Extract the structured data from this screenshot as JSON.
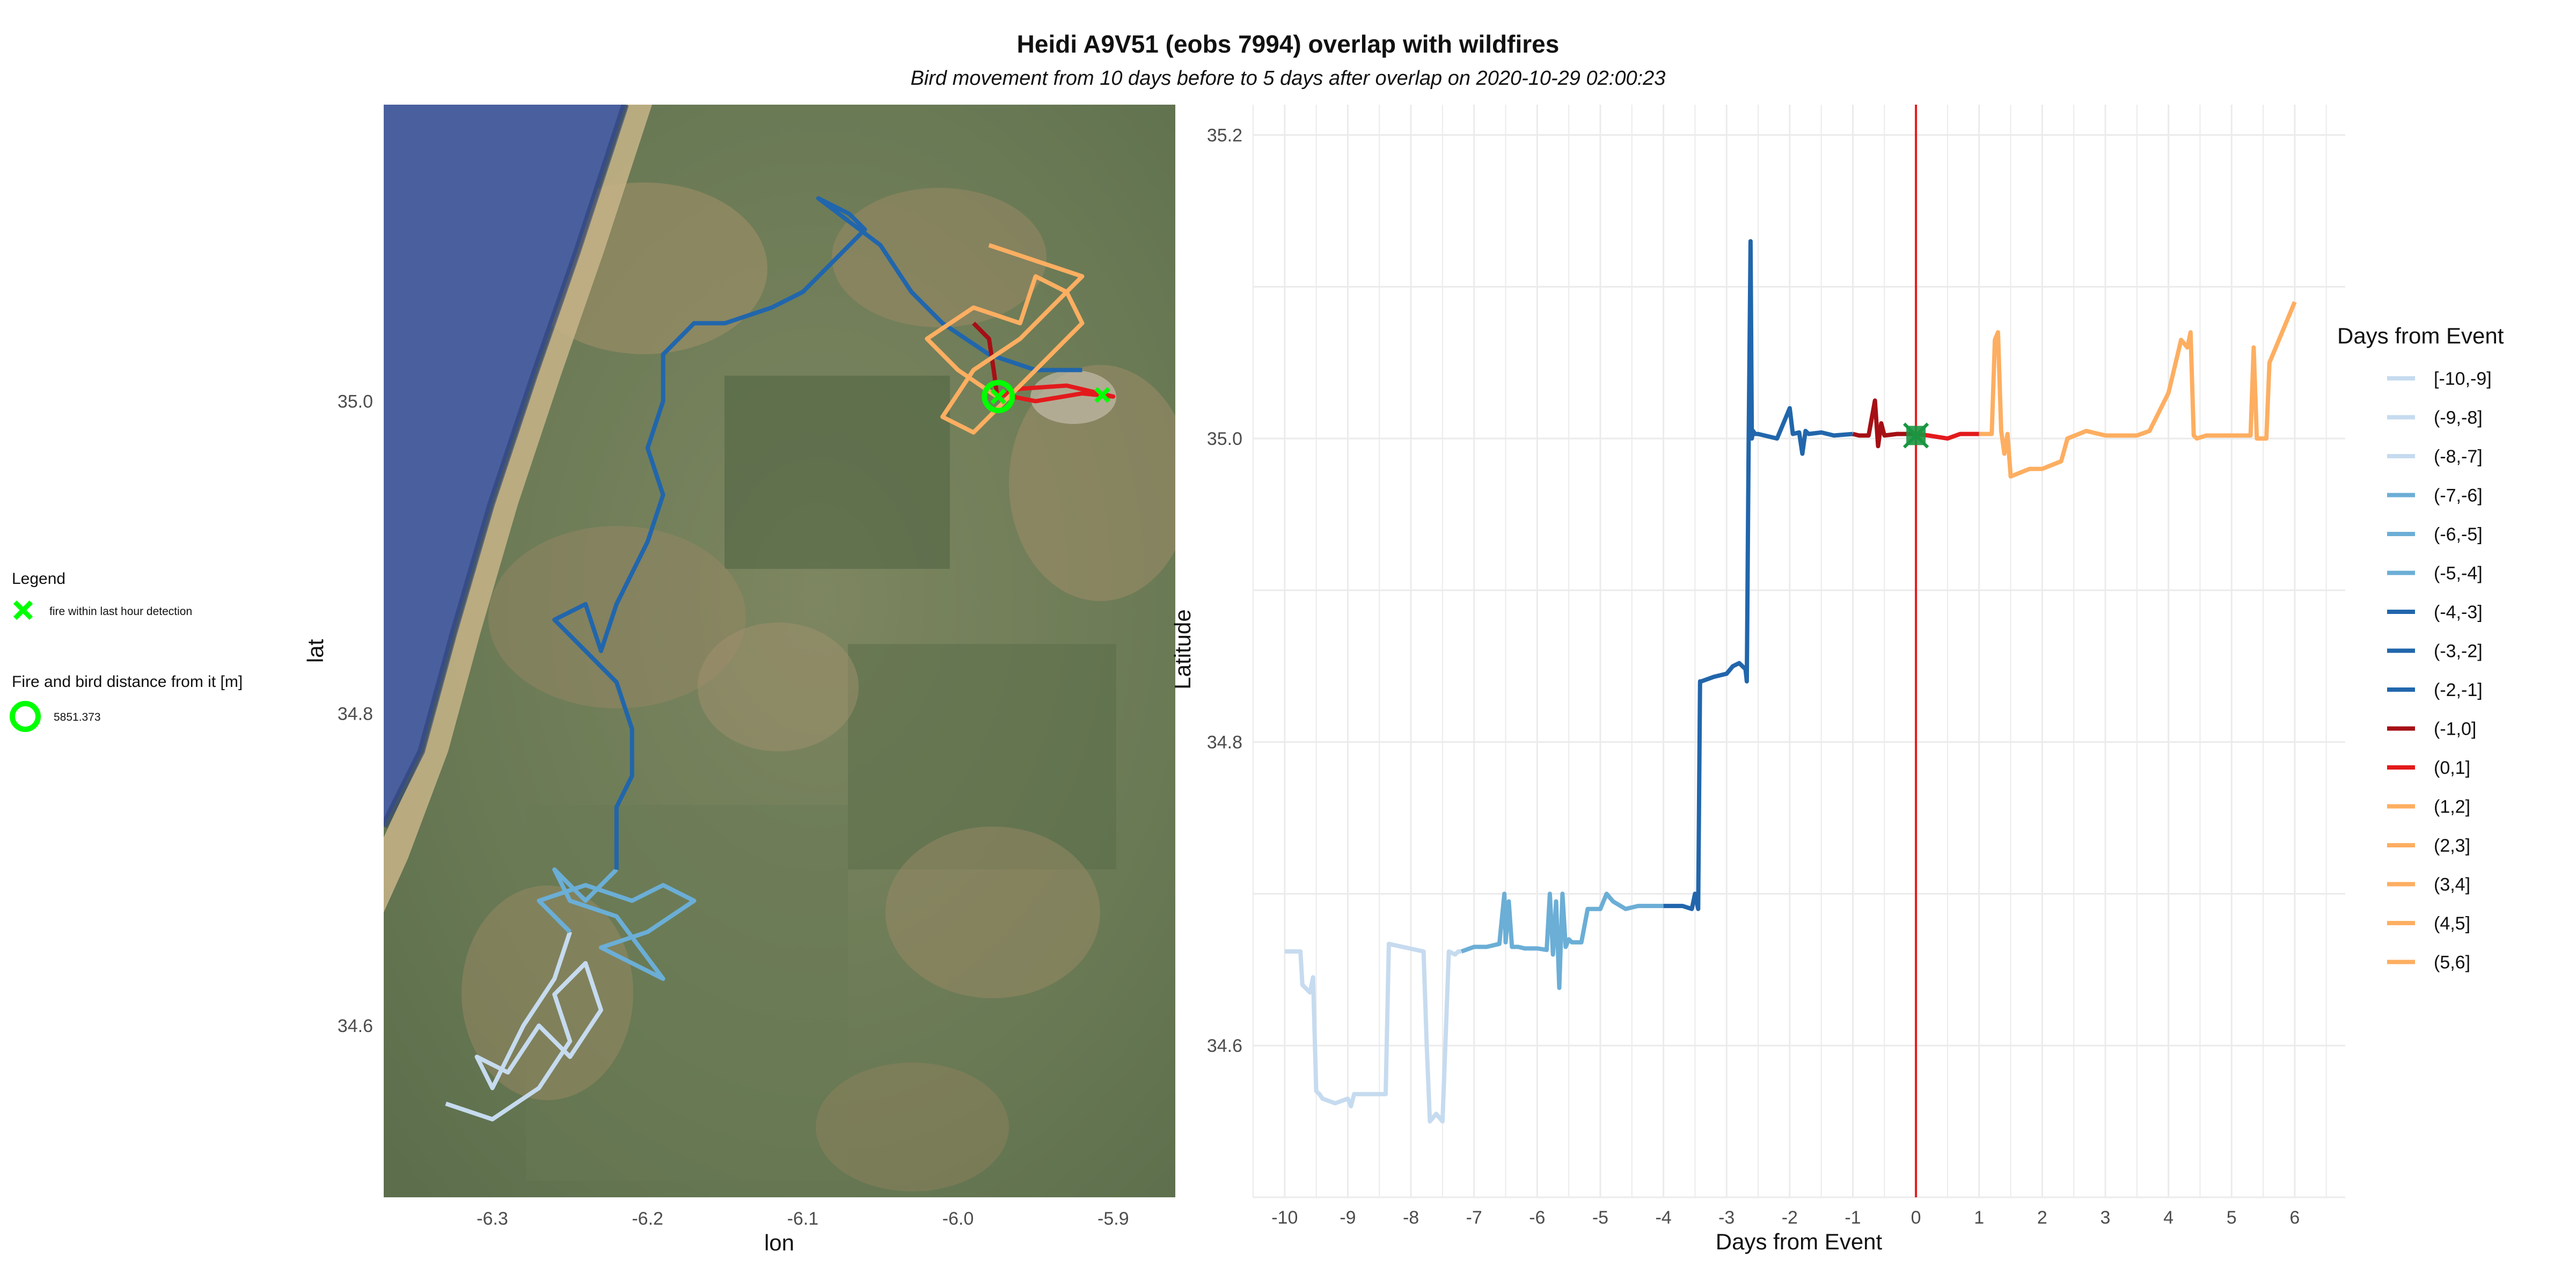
{
  "title": "Heidi A9V51 (eobs 7994) overlap with wildfires",
  "subtitle": "Bird movement from 10 days before to 5 days after overlap on 2020-10-29 02:00:23",
  "left_legend": {
    "title": "Legend",
    "fire_label": "fire within last hour detection",
    "fire_color": "#00ff00",
    "distance_title": "Fire and bird distance from it [m]",
    "distance_value": "5851.373",
    "circle_color": "#00ff00"
  },
  "colors": {
    "light": "#c6dbef",
    "mid": "#6baed6",
    "dark": "#2166ac",
    "darkred": "#a50f15",
    "red": "#e31a1c",
    "orange": "#fdae61",
    "event_line": "#e41a1c",
    "fire_marker": "#1a9641"
  },
  "chart_data": [
    {
      "type": "line",
      "description_kind": "map track",
      "xlabel": "lon",
      "ylabel": "lat",
      "xlim": [
        -6.37,
        -5.86
      ],
      "ylim": [
        34.49,
        35.19
      ],
      "x_ticks": [
        "-6.3",
        "-6.2",
        "-6.1",
        "-6.0",
        "-5.9"
      ],
      "y_ticks": [
        "34.6",
        "34.8",
        "35.0"
      ],
      "x_tick_values": [
        -6.3,
        -6.2,
        -6.1,
        -6.0,
        -5.9
      ],
      "y_tick_values": [
        34.6,
        34.8,
        35.0
      ],
      "basemap": "satellite",
      "fires": [
        {
          "lon": -5.974,
          "lat": 35.003
        },
        {
          "lon": -5.907,
          "lat": 35.004
        }
      ],
      "circle": {
        "lon": -5.974,
        "lat": 35.003
      },
      "tracks": [
        {
          "color_key": "light",
          "lon": [
            -6.33,
            -6.3,
            -6.27,
            -6.25,
            -6.26,
            -6.24,
            -6.23,
            -6.25,
            -6.27,
            -6.29,
            -6.31,
            -6.3,
            -6.28,
            -6.26,
            -6.25
          ],
          "lat": [
            34.55,
            34.54,
            34.56,
            34.59,
            34.62,
            34.64,
            34.61,
            34.58,
            34.6,
            34.57,
            34.58,
            34.56,
            34.6,
            34.63,
            34.66
          ]
        },
        {
          "color_key": "mid",
          "lon": [
            -6.25,
            -6.27,
            -6.24,
            -6.21,
            -6.19,
            -6.17,
            -6.2,
            -6.23,
            -6.21,
            -6.19,
            -6.22,
            -6.25,
            -6.26,
            -6.24,
            -6.22
          ],
          "lat": [
            34.66,
            34.68,
            34.69,
            34.68,
            34.69,
            34.68,
            34.66,
            34.65,
            34.64,
            34.63,
            34.67,
            34.68,
            34.7,
            34.68,
            34.7
          ]
        },
        {
          "color_key": "dark",
          "lon": [
            -6.22,
            -6.22,
            -6.21,
            -6.21,
            -6.22,
            -6.24,
            -6.26,
            -6.24,
            -6.23,
            -6.22,
            -6.2,
            -6.19,
            -6.2,
            -6.19,
            -6.19,
            -6.17,
            -6.15,
            -6.12,
            -6.1,
            -6.08,
            -6.06,
            -6.07,
            -6.09,
            -6.05,
            -6.03,
            -6.01,
            -5.98,
            -5.95,
            -5.92
          ],
          "lat": [
            34.7,
            34.74,
            34.76,
            34.79,
            34.82,
            34.84,
            34.86,
            34.87,
            34.84,
            34.87,
            34.91,
            34.94,
            34.97,
            35.0,
            35.03,
            35.05,
            35.05,
            35.06,
            35.07,
            35.09,
            35.11,
            35.12,
            35.13,
            35.1,
            35.07,
            35.05,
            35.03,
            35.02,
            35.02
          ]
        },
        {
          "color_key": "darkred",
          "lon": [
            -5.99,
            -5.98,
            -5.977,
            -5.975
          ],
          "lat": [
            35.05,
            35.04,
            35.02,
            35.005
          ]
        },
        {
          "color_key": "red",
          "lon": [
            -5.975,
            -5.95,
            -5.92,
            -5.9,
            -5.93,
            -5.96,
            -5.975
          ],
          "lat": [
            35.005,
            35.0,
            35.005,
            35.003,
            35.01,
            35.008,
            35.003
          ]
        },
        {
          "color_key": "orange",
          "lon": [
            -5.975,
            -6.0,
            -6.02,
            -5.99,
            -5.96,
            -5.95,
            -5.93,
            -5.92,
            -5.94,
            -5.97,
            -5.99,
            -6.01,
            -5.99,
            -5.96,
            -5.94,
            -5.92,
            -5.95,
            -5.98
          ],
          "lat": [
            35.003,
            35.02,
            35.04,
            35.06,
            35.05,
            35.08,
            35.07,
            35.05,
            35.03,
            35.0,
            34.98,
            34.99,
            35.02,
            35.04,
            35.06,
            35.08,
            35.09,
            35.1
          ]
        }
      ]
    },
    {
      "type": "line",
      "xlabel": "Days from Event",
      "ylabel": "Latitude",
      "xlim": [
        -10.5,
        6.8
      ],
      "ylim": [
        34.5,
        35.22
      ],
      "x_ticks": [
        "-10",
        "-9",
        "-8",
        "-7",
        "-6",
        "-5",
        "-4",
        "-3",
        "-2",
        "-1",
        "0",
        "1",
        "2",
        "3",
        "4",
        "5",
        "6"
      ],
      "x_tick_values": [
        -10,
        -9,
        -8,
        -7,
        -6,
        -5,
        -4,
        -3,
        -2,
        -1,
        0,
        1,
        2,
        3,
        4,
        5,
        6
      ],
      "y_ticks": [
        "34.6",
        "34.8",
        "35.0",
        "35.2"
      ],
      "y_tick_values": [
        34.6,
        34.8,
        35.0,
        35.2
      ],
      "event_x": 0,
      "fire_marker": {
        "x": 0,
        "y": 35.002
      },
      "legend_title": "Days from Event",
      "legend": [
        {
          "label": "[-10,-9]",
          "color_key": "light"
        },
        {
          "label": "(-9,-8]",
          "color_key": "light"
        },
        {
          "label": "(-8,-7]",
          "color_key": "light"
        },
        {
          "label": "(-7,-6]",
          "color_key": "mid"
        },
        {
          "label": "(-6,-5]",
          "color_key": "mid"
        },
        {
          "label": "(-5,-4]",
          "color_key": "mid"
        },
        {
          "label": "(-4,-3]",
          "color_key": "dark"
        },
        {
          "label": "(-3,-2]",
          "color_key": "dark"
        },
        {
          "label": "(-2,-1]",
          "color_key": "dark"
        },
        {
          "label": "(-1,0]",
          "color_key": "darkred"
        },
        {
          "label": "(0,1]",
          "color_key": "red"
        },
        {
          "label": "(1,2]",
          "color_key": "orange"
        },
        {
          "label": "(2,3]",
          "color_key": "orange"
        },
        {
          "label": "(3,4]",
          "color_key": "orange"
        },
        {
          "label": "(4,5]",
          "color_key": "orange"
        },
        {
          "label": "(5,6]",
          "color_key": "orange"
        }
      ],
      "series": [
        {
          "color_key": "light",
          "x": [
            -10.0,
            -9.75,
            -9.72,
            -9.6,
            -9.55,
            -9.5,
            -9.45,
            -9.4,
            -9.2,
            -9.0,
            -8.95,
            -8.9,
            -8.4,
            -8.35,
            -7.8,
            -7.75,
            -7.7,
            -7.6,
            -7.5,
            -7.4,
            -7.3,
            -7.25,
            -7.2
          ],
          "y": [
            34.662,
            34.662,
            34.64,
            34.635,
            34.645,
            34.57,
            34.568,
            34.565,
            34.562,
            34.565,
            34.56,
            34.568,
            34.568,
            34.667,
            34.662,
            34.6,
            34.55,
            34.555,
            34.55,
            34.662,
            34.66,
            34.662,
            34.662
          ]
        },
        {
          "color_key": "mid",
          "x": [
            -7.2,
            -7.0,
            -6.8,
            -6.6,
            -6.52,
            -6.5,
            -6.45,
            -6.4,
            -6.3,
            -6.2,
            -6.0,
            -5.85,
            -5.8,
            -5.75,
            -5.7,
            -5.65,
            -5.6,
            -5.55,
            -5.5,
            -5.45,
            -5.3,
            -5.2,
            -5.0,
            -4.9,
            -4.8,
            -4.6,
            -4.4,
            -4.2,
            -4.0
          ],
          "y": [
            34.662,
            34.665,
            34.665,
            34.667,
            34.7,
            34.668,
            34.695,
            34.665,
            34.665,
            34.664,
            34.664,
            34.663,
            34.7,
            34.66,
            34.695,
            34.638,
            34.7,
            34.665,
            34.67,
            34.668,
            34.668,
            34.69,
            34.69,
            34.7,
            34.695,
            34.69,
            34.692,
            34.692,
            34.692
          ]
        },
        {
          "color_key": "dark",
          "x": [
            -4.0,
            -3.7,
            -3.55,
            -3.5,
            -3.45,
            -3.42,
            -3.4,
            -3.2,
            -3.0,
            -2.9,
            -2.8,
            -2.7,
            -2.68,
            -2.65,
            -2.62,
            -2.6,
            -2.58,
            -2.55,
            -2.5,
            -2.4,
            -2.2,
            -2.0,
            -1.95,
            -1.85,
            -1.8,
            -1.75,
            -1.7,
            -1.5,
            -1.3,
            -1.0
          ],
          "y": [
            34.692,
            34.692,
            34.69,
            34.7,
            34.69,
            34.84,
            34.84,
            34.843,
            34.845,
            34.85,
            34.852,
            34.848,
            34.84,
            35.0,
            35.13,
            35.0,
            35.005,
            35.003,
            35.003,
            35.002,
            35.0,
            35.02,
            35.003,
            35.004,
            34.99,
            35.005,
            35.003,
            35.004,
            35.002,
            35.003
          ]
        },
        {
          "color_key": "darkred",
          "x": [
            -1.0,
            -0.9,
            -0.75,
            -0.65,
            -0.6,
            -0.55,
            -0.5,
            -0.3,
            0.0
          ],
          "y": [
            35.003,
            35.002,
            35.002,
            35.025,
            34.995,
            35.01,
            35.002,
            35.003,
            35.003
          ]
        },
        {
          "color_key": "red",
          "x": [
            0.0,
            0.2,
            0.5,
            0.7,
            1.0
          ],
          "y": [
            35.003,
            35.002,
            35.0,
            35.003,
            35.003
          ]
        },
        {
          "color_key": "orange",
          "x": [
            1.0,
            1.2,
            1.25,
            1.3,
            1.35,
            1.4,
            1.45,
            1.5,
            1.8,
            2.0,
            2.3,
            2.4,
            2.7,
            3.0,
            3.5,
            3.7,
            4.0,
            4.2,
            4.3,
            4.35,
            4.4,
            4.45,
            4.6,
            5.0,
            5.3,
            5.35,
            5.4,
            5.55,
            5.6,
            5.7,
            6.0
          ],
          "y": [
            35.003,
            35.003,
            35.065,
            35.07,
            35.005,
            34.99,
            35.003,
            34.975,
            34.98,
            34.98,
            34.985,
            35.0,
            35.005,
            35.002,
            35.002,
            35.005,
            35.03,
            35.065,
            35.06,
            35.07,
            35.002,
            35.0,
            35.002,
            35.002,
            35.002,
            35.06,
            35.0,
            35.0,
            35.05,
            35.06,
            35.09
          ]
        }
      ]
    }
  ]
}
